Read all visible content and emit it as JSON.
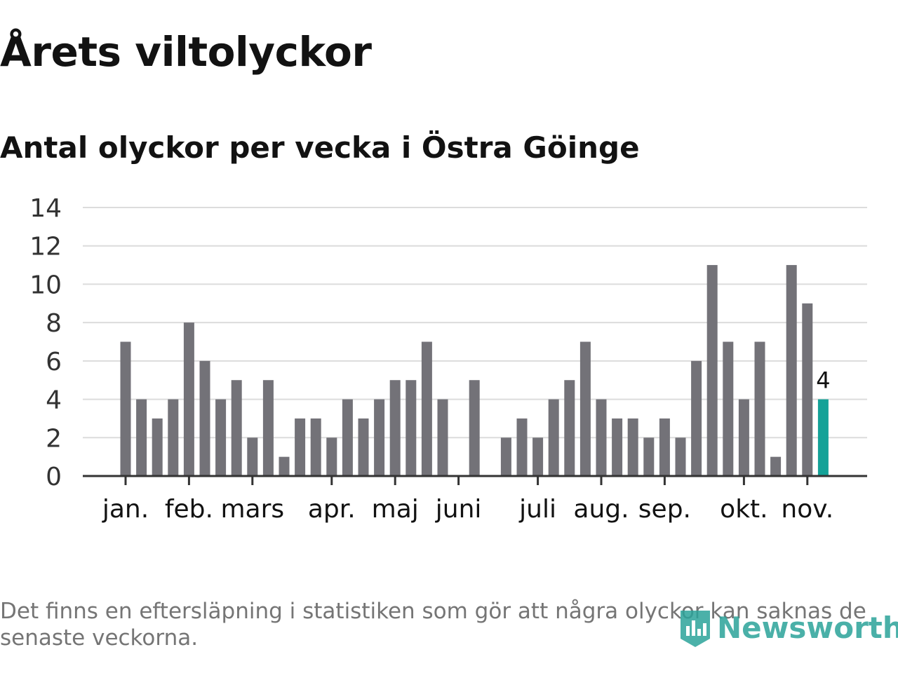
{
  "title": "Årets viltolyckor",
  "subtitle": "Antal olyckor per vecka i Östra Göinge",
  "footnote": "Det finns en eftersläpning i statistiken som gör att några olyckor kan saknas de senaste veckorna.",
  "brand": {
    "name": "Newsworthy",
    "icon": "newsworthy-logo-icon"
  },
  "colors": {
    "bar": "#737278",
    "highlight": "#14a298",
    "grid": "#dcdcdc",
    "axis": "#333333",
    "text": "#121212"
  },
  "chart_data": {
    "type": "bar",
    "ylim": [
      0,
      14
    ],
    "yticks": [
      0,
      2,
      4,
      6,
      8,
      10,
      12,
      14
    ],
    "grid": true,
    "xlabel": "",
    "ylabel": "",
    "month_labels": [
      "jan.",
      "feb.",
      "mars",
      "apr.",
      "maj",
      "juni",
      "juli",
      "aug.",
      "sep.",
      "okt.",
      "nov."
    ],
    "month_start_week": [
      1,
      5,
      9,
      14,
      18,
      22,
      27,
      31,
      35,
      40,
      44
    ],
    "weeks": [
      1,
      2,
      3,
      4,
      5,
      6,
      7,
      8,
      9,
      10,
      11,
      12,
      13,
      14,
      15,
      16,
      17,
      18,
      19,
      20,
      21,
      22,
      23,
      24,
      25,
      26,
      27,
      28,
      29,
      30,
      31,
      32,
      33,
      34,
      35,
      36,
      37,
      38,
      39,
      40,
      41,
      42,
      43,
      44,
      45
    ],
    "values": [
      7,
      4,
      3,
      4,
      8,
      6,
      4,
      5,
      2,
      5,
      1,
      3,
      3,
      2,
      4,
      3,
      4,
      5,
      5,
      7,
      4,
      0,
      5,
      0,
      2,
      3,
      2,
      4,
      5,
      7,
      4,
      3,
      3,
      2,
      3,
      2,
      6,
      11,
      7,
      4,
      7,
      1,
      11,
      9,
      4
    ],
    "highlight_label": "4"
  }
}
